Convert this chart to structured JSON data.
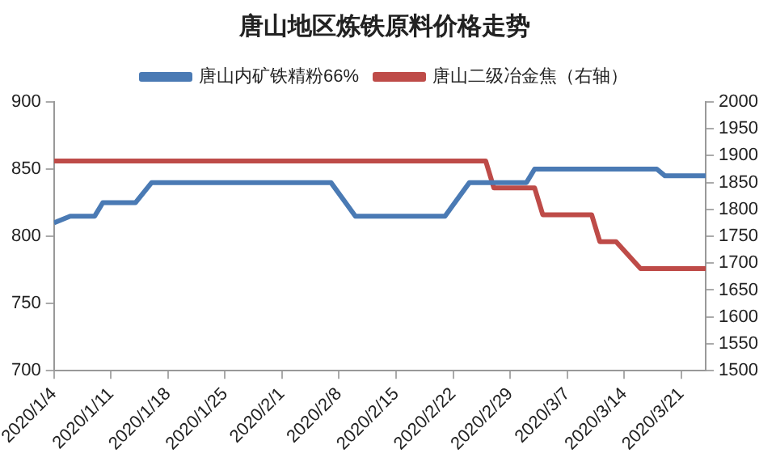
{
  "chart_data": {
    "type": "line",
    "title": "唐山地区炼铁原料价格走势",
    "legend": "top",
    "xlim": [
      "2020-01-04",
      "2020-03-24"
    ],
    "xticks": [
      {
        "value": "2020-01-04",
        "label": "2020/1/4"
      },
      {
        "value": "2020-01-11",
        "label": "2020/1/11"
      },
      {
        "value": "2020-01-18",
        "label": "2020/1/18"
      },
      {
        "value": "2020-01-25",
        "label": "2020/1/25"
      },
      {
        "value": "2020-02-01",
        "label": "2020/2/1"
      },
      {
        "value": "2020-02-08",
        "label": "2020/2/8"
      },
      {
        "value": "2020-02-15",
        "label": "2020/2/15"
      },
      {
        "value": "2020-02-22",
        "label": "2020/2/22"
      },
      {
        "value": "2020-02-29",
        "label": "2020/2/29"
      },
      {
        "value": "2020-03-07",
        "label": "2020/3/7"
      },
      {
        "value": "2020-03-14",
        "label": "2020/3/14"
      },
      {
        "value": "2020-03-21",
        "label": "2020/3/21"
      }
    ],
    "ylim": [
      700,
      900
    ],
    "yticks": [
      700,
      750,
      800,
      850,
      900
    ],
    "y2lim": [
      1500,
      2000
    ],
    "y2ticks": [
      1500,
      1550,
      1600,
      1650,
      1700,
      1750,
      1800,
      1850,
      1900,
      1950,
      2000
    ],
    "marker": "none",
    "line_style": "solid",
    "series": [
      {
        "name": "唐山内矿铁精粉66%",
        "color": "#4a7ab4",
        "x": [
          "2020-01-04",
          "2020-01-06",
          "2020-01-09",
          "2020-01-10",
          "2020-01-14",
          "2020-01-16",
          "2020-02-07",
          "2020-02-10",
          "2020-02-21",
          "2020-02-24",
          "2020-03-02",
          "2020-03-03",
          "2020-03-18",
          "2020-03-19",
          "2020-03-24"
        ],
        "values": [
          810,
          815,
          815,
          825,
          825,
          840,
          840,
          815,
          815,
          840,
          840,
          850,
          850,
          845,
          845
        ]
      },
      {
        "name": "唐山二级冶金焦（右轴）",
        "color": "#be4b48",
        "axis": "y2",
        "x": [
          "2020-01-04",
          "2020-02-26",
          "2020-02-27",
          "2020-03-03",
          "2020-03-04",
          "2020-03-10",
          "2020-03-11",
          "2020-03-13",
          "2020-03-16",
          "2020-03-24"
        ],
        "values": [
          1890,
          1890,
          1840,
          1840,
          1790,
          1790,
          1740,
          1740,
          1690,
          1690
        ]
      }
    ]
  }
}
